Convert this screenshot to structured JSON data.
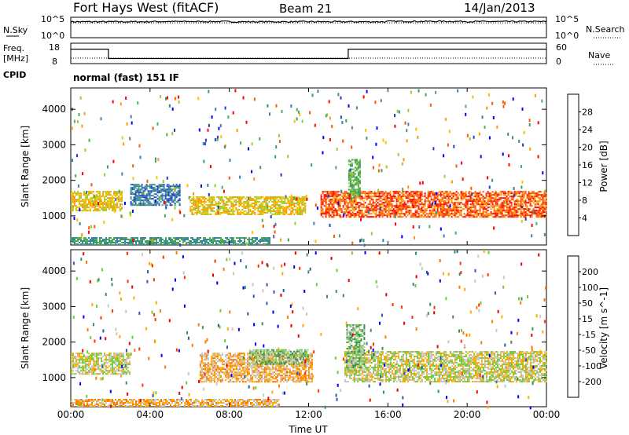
{
  "header": {
    "title": "Fort Hays West (fitACF)",
    "beam": "Beam 21",
    "date": "14/Jan/2013",
    "cpid_label": "CPID",
    "cpid_value": "normal (fast) 151 IF"
  },
  "chart_data": [
    {
      "type": "line",
      "panel": "noise",
      "left_label": "N.Sky",
      "right_label": "N.Search",
      "left_ticks": [
        "10^5",
        "10^0"
      ],
      "right_ticks": [
        "10^5",
        "10^0"
      ],
      "x": [
        "00:00",
        "04:00",
        "08:00",
        "12:00",
        "16:00",
        "20:00",
        "00:00"
      ],
      "series": [
        {
          "values": [
            4.3,
            4.35,
            4.3,
            4.3,
            4.4,
            4.35,
            4.3
          ]
        }
      ]
    },
    {
      "type": "line",
      "panel": "frequency",
      "left_label_1": "Freq.",
      "left_label_2": "[MHz]",
      "right_label": "Nave",
      "left_ticks": [
        "18",
        "8"
      ],
      "right_ticks": [
        "60",
        "0"
      ],
      "series": [
        {
          "segments": [
            {
              "from_h": 0,
              "to_h": 1.9,
              "value": 15.5
            },
            {
              "from_h": 1.9,
              "to_h": 14.0,
              "value": 10.0
            },
            {
              "from_h": 14.0,
              "to_h": 24,
              "value": 15.5
            }
          ]
        }
      ]
    },
    {
      "type": "heatmap",
      "panel": "power",
      "ylabel": "Slant Range [km]",
      "xlabel": "Time UT",
      "x_ticks": [
        "00:00",
        "04:00",
        "08:00",
        "12:00",
        "16:00",
        "20:00",
        "00:00"
      ],
      "y_ticks": [
        "1000",
        "2000",
        "3000",
        "4000"
      ],
      "ylim": [
        180,
        4600
      ],
      "colorbar": {
        "label": "Power [dB]",
        "ticks": [
          "28",
          "24",
          "20",
          "16",
          "12",
          "8",
          "4"
        ],
        "colors": [
          "#0000ff",
          "#2040c0",
          "#3b7fb0",
          "#3a9a6a",
          "#4caf50",
          "#9ccc2c",
          "#f5c400",
          "#ff9900",
          "#ff5500",
          "#ff0000"
        ]
      },
      "bands": [
        {
          "x0": 0.0,
          "x1": 2.6,
          "y0": 1150,
          "y1": 1700,
          "level": 6
        },
        {
          "x0": 6.0,
          "x1": 11.8,
          "y0": 1050,
          "y1": 1550,
          "level": 6
        },
        {
          "x0": 12.6,
          "x1": 24.0,
          "y0": 950,
          "y1": 1700,
          "level": 8
        },
        {
          "x0": 14.0,
          "x1": 14.6,
          "y0": 1500,
          "y1": 2600,
          "level": 4
        },
        {
          "x0": 3.0,
          "x1": 5.5,
          "y0": 1300,
          "y1": 1900,
          "level": 2
        },
        {
          "x0": 0.0,
          "x1": 10.0,
          "y0": 200,
          "y1": 400,
          "level": 3
        }
      ]
    },
    {
      "type": "heatmap",
      "panel": "velocity",
      "ylabel": "Slant Range [km]",
      "xlabel": "Time UT",
      "x_ticks": [
        "00:00",
        "04:00",
        "08:00",
        "12:00",
        "16:00",
        "20:00",
        "00:00"
      ],
      "y_ticks": [
        "1000",
        "2000",
        "3000",
        "4000"
      ],
      "ylim": [
        180,
        4600
      ],
      "colorbar": {
        "label": "Velocity [m s^-1]",
        "ticks": [
          "200",
          "100",
          "50",
          "15",
          "-15",
          "-50",
          "-100",
          "-200"
        ],
        "colors": [
          "#0000ff",
          "#2a5ab0",
          "#3a8f5a",
          "#6ccc3a",
          "#c8c8c0",
          "#ffaa00",
          "#ff7700",
          "#ff3300",
          "#ee0000"
        ]
      },
      "bands": [
        {
          "x0": 0.0,
          "x1": 3.0,
          "y0": 1100,
          "y1": 1700,
          "level": 4
        },
        {
          "x0": 6.5,
          "x1": 12.2,
          "y0": 900,
          "y1": 1700,
          "level": 5
        },
        {
          "x0": 9.0,
          "x1": 12.0,
          "y0": 1400,
          "y1": 1800,
          "level": 3
        },
        {
          "x0": 13.8,
          "x1": 24.0,
          "y0": 900,
          "y1": 1750,
          "level": 4
        },
        {
          "x0": 13.9,
          "x1": 14.8,
          "y0": 1200,
          "y1": 2500,
          "level": 3
        },
        {
          "x0": 0.0,
          "x1": 10.5,
          "y0": 200,
          "y1": 400,
          "level": 5
        }
      ]
    }
  ]
}
